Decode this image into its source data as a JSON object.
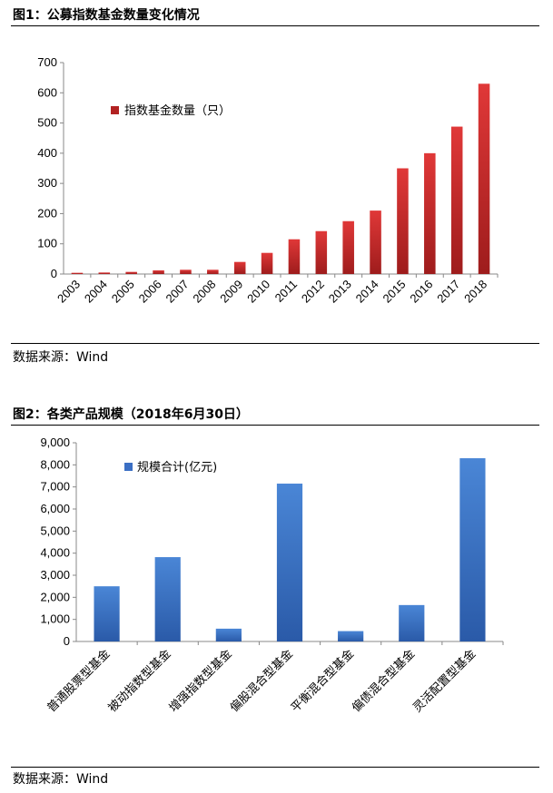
{
  "figures": [
    {
      "title": "图1：公募指数基金数量变化情况",
      "source": "数据来源：Wind"
    },
    {
      "title": "图2：各类产品规模（2018年6月30日）",
      "source": "数据来源：Wind"
    }
  ],
  "chart_data": [
    {
      "type": "bar",
      "categories": [
        "2003",
        "2004",
        "2005",
        "2006",
        "2007",
        "2008",
        "2009",
        "2010",
        "2011",
        "2012",
        "2013",
        "2014",
        "2015",
        "2016",
        "2017",
        "2018"
      ],
      "series": [
        {
          "name": "指数基金数量（只）",
          "values": [
            4,
            5,
            7,
            12,
            14,
            14,
            40,
            70,
            115,
            142,
            175,
            210,
            350,
            400,
            488,
            630
          ]
        }
      ],
      "ylim": [
        0,
        700
      ],
      "yticks": [
        "0",
        "100",
        "200",
        "300",
        "400",
        "500",
        "600",
        "700"
      ],
      "legend_position": "top-left",
      "grid": false,
      "color": "#b22222"
    },
    {
      "type": "bar",
      "categories": [
        "普通股票型基金",
        "被动指数型基金",
        "增强指数型基金",
        "偏股混合型基金",
        "平衡混合型基金",
        "偏债混合型基金",
        "灵活配置型基金"
      ],
      "series": [
        {
          "name": "规模合计(亿元)",
          "values": [
            2500,
            3820,
            580,
            7150,
            470,
            1650,
            8300
          ]
        }
      ],
      "ylim": [
        0,
        9000
      ],
      "yticks": [
        "0",
        "1,000",
        "2,000",
        "3,000",
        "4,000",
        "5,000",
        "6,000",
        "7,000",
        "8,000",
        "9,000"
      ],
      "legend_position": "top-left",
      "grid": false,
      "color": "#3b6fc4"
    }
  ]
}
